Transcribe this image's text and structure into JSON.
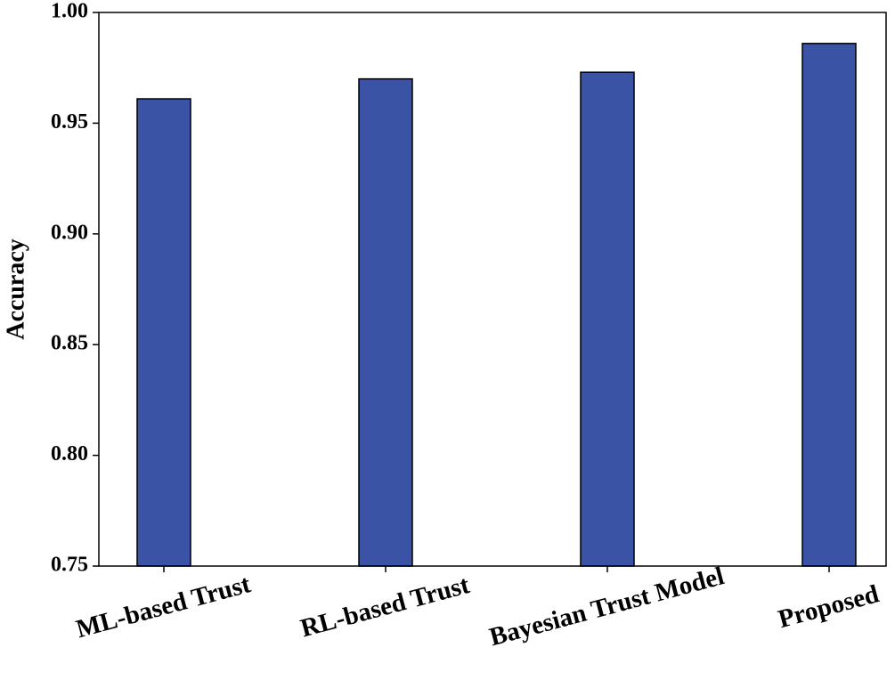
{
  "chart_data": {
    "type": "bar",
    "y_label": "Accuracy",
    "categories": [
      "ML-based Trust",
      "RL-based Trust",
      "Bayesian Trust Model",
      "Proposed"
    ],
    "values": [
      0.961,
      0.97,
      0.973,
      0.986
    ],
    "color": "#3a53a4",
    "ylim": [
      0.75,
      1.0
    ],
    "yticks": [
      0.75,
      {
        "value": 0.8,
        "label": "0.80"
      },
      0.85,
      {
        "value": 0.9,
        "label": "0.90"
      },
      0.95,
      {
        "value": 1.0,
        "label": "1.00"
      }
    ],
    "grid": false
  }
}
